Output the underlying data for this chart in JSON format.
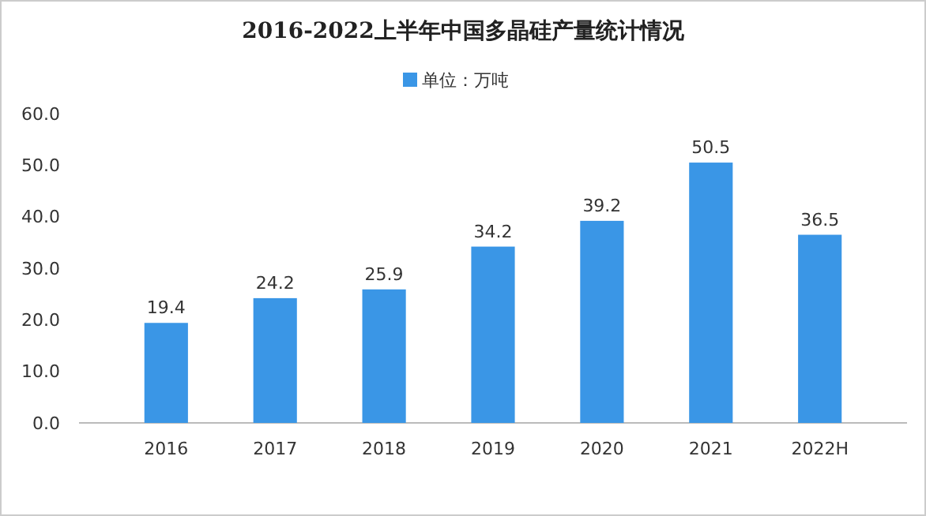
{
  "chart_data": {
    "type": "bar",
    "title": "2016-2022上半年中国多晶硅产量统计情况",
    "categories": [
      "2016",
      "2017",
      "2018",
      "2019",
      "2020",
      "2021",
      "2022H"
    ],
    "series": [
      {
        "name": "单位：万吨",
        "color": "#3a96e6",
        "values": [
          19.4,
          24.2,
          25.9,
          34.2,
          39.2,
          50.5,
          36.5
        ]
      }
    ],
    "ylim": [
      0,
      60
    ],
    "yticks": [
      {
        "value": 0,
        "label": "0.0"
      },
      {
        "value": 10,
        "label": "10.0"
      },
      {
        "value": 20,
        "label": "20.0"
      },
      {
        "value": 30,
        "label": "30.0"
      },
      {
        "value": 40,
        "label": "40.0"
      },
      {
        "value": 50,
        "label": "50.0"
      },
      {
        "value": 60,
        "label": "60.0"
      }
    ],
    "data_labels": true,
    "legend": "top",
    "grid": false
  }
}
